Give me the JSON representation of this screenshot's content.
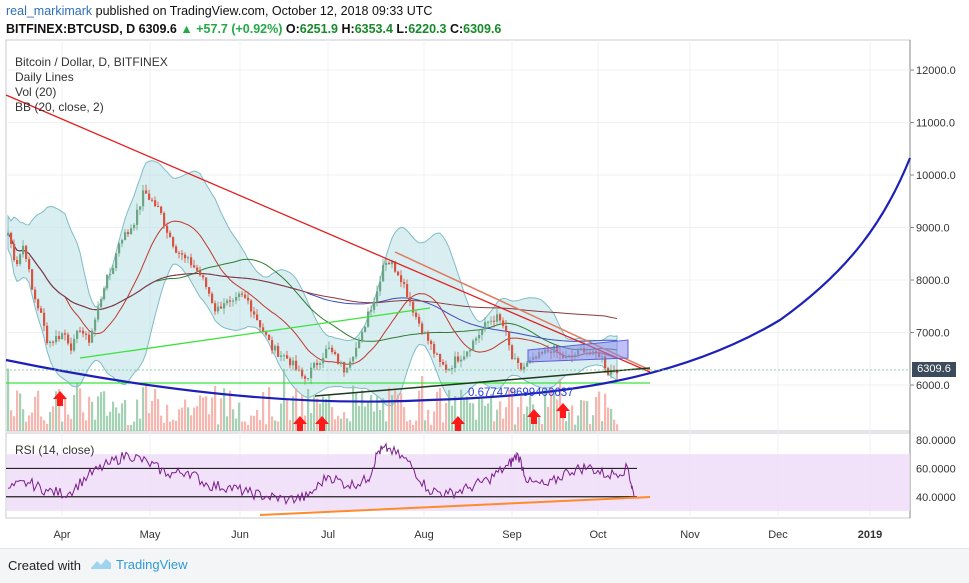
{
  "header": {
    "author": "real_markimark",
    "published_text": "published on TradingView.com, October 12, 2018 09:33 UTC",
    "symbol": "BITFINEX:BTCUSD, D",
    "last": "6309.6",
    "change": "+57.7 (+0.92%)",
    "o_label": "O:",
    "o": "6251.9",
    "h_label": "H:",
    "h": "6353.4",
    "l_label": "L:",
    "l": "6220.3",
    "c_label": "C:",
    "c": "6309.6"
  },
  "legend": {
    "title": "Bitcoin / Dollar, D, BITFINEX",
    "line2": "Daily Lines",
    "line3": "Vol (20)",
    "line4": "BB (20, close, 2)",
    "rsi": "RSI (14, close)"
  },
  "annotation_value": "0.677479699400637",
  "price_label": "6309.6",
  "footer": {
    "created_with": "Created with",
    "brand": "TradingView"
  },
  "colors": {
    "up": "#6ba583",
    "down": "#d75442",
    "bb_fill": "#b9e0e6",
    "red_line": "#e31b1b",
    "blue_curve": "#1c20b8",
    "green_line": "#39e339",
    "orange_line": "#ff8b2a",
    "rsi_fill": "#eed9f8",
    "rsi_line": "#7a1e8c"
  },
  "chart_data": [
    {
      "type": "candlestick",
      "title": "Bitcoin / Dollar, D, BITFINEX",
      "x_ticks": [
        "Apr",
        "May",
        "Jun",
        "Jul",
        "Aug",
        "Sep",
        "Oct",
        "Nov",
        "Dec",
        "2019"
      ],
      "y_ticks": [
        "12000.0",
        "11000.0",
        "10000.0",
        "9000.0",
        "8000.0",
        "7000.0",
        "6000.0"
      ],
      "ylim": [
        5600,
        12600
      ],
      "close_path": [
        [
          0,
          8900
        ],
        [
          8,
          8300
        ],
        [
          16,
          8700
        ],
        [
          24,
          7800
        ],
        [
          32,
          7400
        ],
        [
          40,
          6800
        ],
        [
          48,
          6900
        ],
        [
          56,
          7000
        ],
        [
          64,
          6700
        ],
        [
          72,
          7100
        ],
        [
          80,
          6800
        ],
        [
          88,
          7300
        ],
        [
          96,
          7900
        ],
        [
          104,
          8200
        ],
        [
          112,
          8800
        ],
        [
          120,
          8900
        ],
        [
          128,
          9200
        ],
        [
          136,
          9700
        ],
        [
          144,
          9500
        ],
        [
          152,
          9300
        ],
        [
          160,
          8900
        ],
        [
          168,
          8600
        ],
        [
          176,
          8400
        ],
        [
          184,
          8300
        ],
        [
          192,
          8100
        ],
        [
          200,
          7800
        ],
        [
          208,
          7400
        ],
        [
          216,
          7600
        ],
        [
          224,
          7500
        ],
        [
          232,
          7700
        ],
        [
          240,
          7600
        ],
        [
          248,
          7300
        ],
        [
          256,
          7000
        ],
        [
          264,
          6700
        ],
        [
          272,
          6600
        ],
        [
          280,
          6500
        ],
        [
          288,
          6300
        ],
        [
          296,
          6100
        ],
        [
          304,
          6300
        ],
        [
          312,
          6500
        ],
        [
          320,
          6700
        ],
        [
          328,
          6500
        ],
        [
          336,
          6300
        ],
        [
          344,
          6600
        ],
        [
          352,
          6800
        ],
        [
          360,
          7400
        ],
        [
          368,
          7700
        ],
        [
          376,
          8400
        ],
        [
          384,
          8300
        ],
        [
          392,
          8100
        ],
        [
          400,
          7700
        ],
        [
          408,
          7300
        ],
        [
          416,
          7000
        ],
        [
          424,
          6700
        ],
        [
          432,
          6400
        ],
        [
          440,
          6300
        ],
        [
          448,
          6500
        ],
        [
          456,
          6600
        ],
        [
          464,
          6800
        ],
        [
          472,
          7000
        ],
        [
          480,
          7200
        ],
        [
          488,
          7300
        ],
        [
          496,
          7100
        ],
        [
          504,
          6500
        ],
        [
          512,
          6300
        ],
        [
          520,
          6400
        ],
        [
          528,
          6500
        ],
        [
          536,
          6600
        ],
        [
          544,
          6700
        ],
        [
          552,
          6550
        ],
        [
          560,
          6500
        ],
        [
          568,
          6600
        ],
        [
          576,
          6700
        ],
        [
          584,
          6550
        ],
        [
          592,
          6600
        ],
        [
          600,
          6250
        ],
        [
          606,
          6309.6
        ]
      ],
      "series": [
        {
          "name": "Bitcoin / Dollar",
          "type": "candlestick"
        },
        {
          "name": "Vol (20)",
          "type": "bar"
        },
        {
          "name": "BB (20, close, 2)",
          "type": "band"
        }
      ],
      "last_price": 6309.6
    },
    {
      "type": "line",
      "title": "RSI (14, close)",
      "y_ticks": [
        "80.0000",
        "60.0000",
        "40.0000"
      ],
      "ylim": [
        25,
        85
      ],
      "values_path": [
        [
          0,
          46
        ],
        [
          20,
          50
        ],
        [
          40,
          44
        ],
        [
          60,
          42
        ],
        [
          80,
          55
        ],
        [
          100,
          63
        ],
        [
          120,
          70
        ],
        [
          140,
          64
        ],
        [
          160,
          56
        ],
        [
          180,
          58
        ],
        [
          200,
          48
        ],
        [
          220,
          47
        ],
        [
          240,
          43
        ],
        [
          260,
          40
        ],
        [
          280,
          38
        ],
        [
          300,
          40
        ],
        [
          320,
          55
        ],
        [
          340,
          48
        ],
        [
          360,
          52
        ],
        [
          370,
          72
        ],
        [
          380,
          74
        ],
        [
          400,
          65
        ],
        [
          420,
          45
        ],
        [
          440,
          42
        ],
        [
          460,
          46
        ],
        [
          480,
          52
        ],
        [
          500,
          62
        ],
        [
          510,
          70
        ],
        [
          520,
          50
        ],
        [
          540,
          48
        ],
        [
          560,
          58
        ],
        [
          580,
          61
        ],
        [
          600,
          55
        ],
        [
          620,
          60
        ],
        [
          626,
          40
        ]
      ],
      "hlines": [
        60,
        40
      ]
    }
  ]
}
